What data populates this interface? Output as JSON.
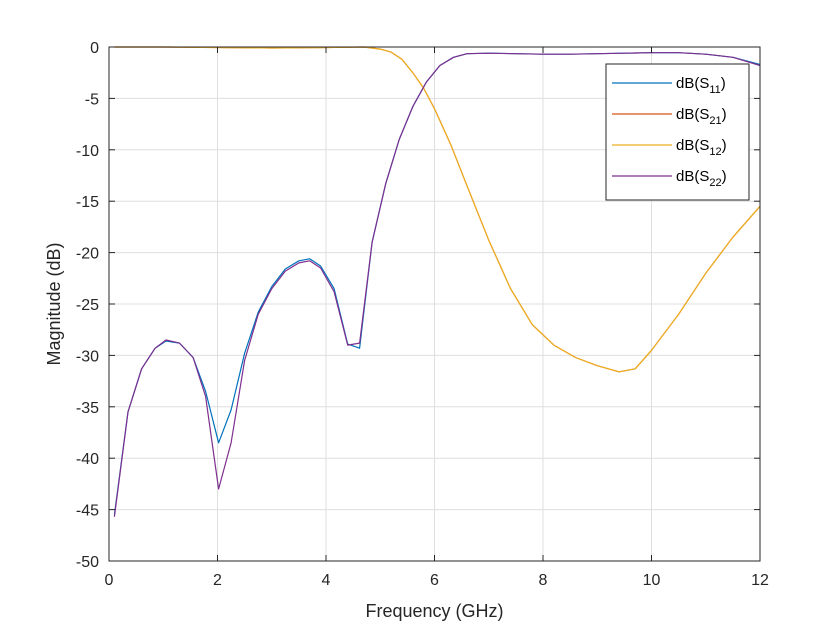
{
  "chart_data": {
    "type": "line",
    "xlabel": "Frequency (GHz)",
    "ylabel": "Magnitude (dB)",
    "xlim": [
      0,
      12
    ],
    "ylim": [
      -50,
      0
    ],
    "xticks": [
      "0",
      "2",
      "4",
      "6",
      "8",
      "10",
      "12"
    ],
    "yticks": [
      "0",
      "-5",
      "-10",
      "-15",
      "-20",
      "-25",
      "-30",
      "-35",
      "-40",
      "-45",
      "-50"
    ],
    "grid": true,
    "legend_position": "top-right",
    "series": [
      {
        "legend": {
          "pre": "dB(S",
          "sub": "11",
          "post": ")"
        },
        "color": "#0072bd",
        "x": [
          0.1,
          0.35,
          0.6,
          0.85,
          1.05,
          1.3,
          1.55,
          1.78,
          2.02,
          2.25,
          2.5,
          2.75,
          3.0,
          3.25,
          3.5,
          3.7,
          3.9,
          4.15,
          4.4,
          4.62,
          4.85,
          5.1,
          5.35,
          5.6,
          5.85,
          6.1,
          6.35,
          6.6,
          7.0,
          7.5,
          8.0,
          8.5,
          9.0,
          9.5,
          10.0,
          10.5,
          11.0,
          11.5,
          12.0
        ],
        "y": [
          -45.5,
          -35.5,
          -31.3,
          -29.3,
          -28.6,
          -28.8,
          -30.2,
          -33.5,
          -38.5,
          -35.3,
          -29.8,
          -25.8,
          -23.3,
          -21.6,
          -20.8,
          -20.6,
          -21.3,
          -23.5,
          -28.9,
          -29.3,
          -19.0,
          -13.3,
          -9.0,
          -5.8,
          -3.4,
          -1.8,
          -1.0,
          -0.65,
          -0.6,
          -0.65,
          -0.7,
          -0.7,
          -0.65,
          -0.6,
          -0.55,
          -0.55,
          -0.7,
          -1.0,
          -1.7
        ]
      },
      {
        "legend": {
          "pre": "dB(S",
          "sub": "21",
          "post": ")"
        },
        "color": "#d95319",
        "x": [
          0.1,
          1,
          2,
          3,
          4,
          4.7,
          5.0,
          5.2,
          5.4,
          5.6,
          5.8,
          6.0,
          6.3,
          6.6,
          7.0,
          7.4,
          7.8,
          8.2,
          8.6,
          9.0,
          9.4,
          9.7,
          10.0,
          10.5,
          11.0,
          11.5,
          12.0
        ],
        "y": [
          0,
          0,
          -0.05,
          -0.1,
          -0.05,
          0,
          -0.2,
          -0.5,
          -1.2,
          -2.5,
          -4.0,
          -6.0,
          -9.5,
          -13.5,
          -18.8,
          -23.5,
          -27.0,
          -29.0,
          -30.2,
          -31.0,
          -31.6,
          -31.3,
          -29.5,
          -26.0,
          -22.0,
          -18.5,
          -15.5
        ]
      },
      {
        "legend": {
          "pre": "dB(S",
          "sub": "12",
          "post": ")"
        },
        "color": "#edb120",
        "x": [
          0.1,
          1,
          2,
          3,
          4,
          4.7,
          5.0,
          5.2,
          5.4,
          5.6,
          5.8,
          6.0,
          6.3,
          6.6,
          7.0,
          7.4,
          7.8,
          8.2,
          8.6,
          9.0,
          9.4,
          9.7,
          10.0,
          10.5,
          11.0,
          11.5,
          12.0
        ],
        "y": [
          0,
          0,
          -0.05,
          -0.1,
          -0.05,
          0,
          -0.2,
          -0.5,
          -1.2,
          -2.5,
          -4.0,
          -6.0,
          -9.5,
          -13.5,
          -18.8,
          -23.5,
          -27.0,
          -29.0,
          -30.2,
          -31.0,
          -31.6,
          -31.3,
          -29.5,
          -26.0,
          -22.0,
          -18.5,
          -15.5
        ]
      },
      {
        "legend": {
          "pre": "dB(S",
          "sub": "22",
          "post": ")"
        },
        "color": "#7e2f8e",
        "x": [
          0.1,
          0.35,
          0.6,
          0.85,
          1.05,
          1.3,
          1.55,
          1.78,
          2.02,
          2.25,
          2.5,
          2.75,
          3.0,
          3.25,
          3.5,
          3.7,
          3.9,
          4.15,
          4.4,
          4.62,
          4.85,
          5.1,
          5.35,
          5.6,
          5.85,
          6.1,
          6.35,
          6.6,
          7.0,
          7.5,
          8.0,
          8.5,
          9.0,
          9.5,
          10.0,
          10.5,
          11.0,
          11.5,
          12.0
        ],
        "y": [
          -45.7,
          -35.5,
          -31.3,
          -29.3,
          -28.5,
          -28.8,
          -30.2,
          -34.0,
          -43.0,
          -38.5,
          -30.5,
          -26.0,
          -23.5,
          -21.8,
          -21.0,
          -20.8,
          -21.5,
          -23.8,
          -29.0,
          -28.8,
          -19.0,
          -13.3,
          -9.0,
          -5.8,
          -3.4,
          -1.8,
          -1.0,
          -0.65,
          -0.6,
          -0.65,
          -0.7,
          -0.7,
          -0.65,
          -0.6,
          -0.55,
          -0.55,
          -0.7,
          -1.0,
          -1.8
        ]
      }
    ]
  }
}
